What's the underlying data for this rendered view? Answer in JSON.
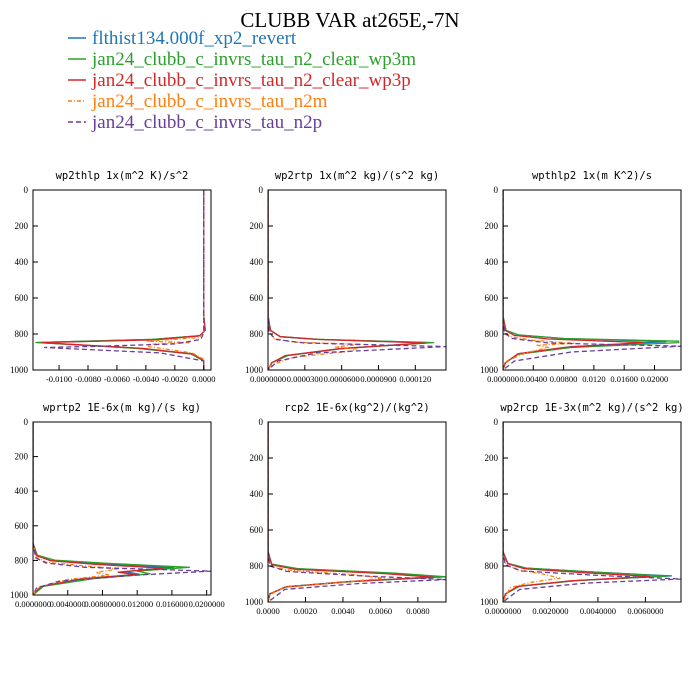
{
  "figure": {
    "title": "CLUBB VAR at265E,-7N"
  },
  "legend": [
    {
      "label": "flthist134.000f_xp2_revert",
      "color": "#1f77b4",
      "dash": "solid"
    },
    {
      "label": "jan24_clubb_c_invrs_tau_n2_clear_wp3m",
      "color": "#2ca02c",
      "dash": "solid"
    },
    {
      "label": "jan24_clubb_c_invrs_tau_n2_clear_wp3p",
      "color": "#d62728",
      "dash": "solid"
    },
    {
      "label": "jan24_clubb_c_invrs_tau_n2m",
      "color": "#ff7f0e",
      "dash": "dashdot"
    },
    {
      "label": "jan24_clubb_c_invrs_tau_n2p",
      "color": "#6a3d9a",
      "dash": "dashed"
    }
  ],
  "chart_data": [
    {
      "type": "line",
      "title": "wp2thlp  1x(m^2 K)/s^2",
      "xlim": [
        -0.0118,
        0.0005
      ],
      "ylim": [
        1000,
        0
      ],
      "xticks": [
        -0.01,
        -0.008,
        -0.006,
        -0.004,
        -0.002,
        0.0
      ],
      "xtick_labels": [
        "-0.0100",
        "-0.0080",
        "-0.0060",
        "-0.0040",
        "-0.0020",
        "0.0000"
      ],
      "yticks": [
        0,
        200,
        400,
        600,
        800,
        1000
      ],
      "ytick_labels": [
        "0",
        "200",
        "400",
        "600",
        "800",
        "1000"
      ],
      "series": [
        {
          "x": [
            0,
            0,
            0,
            0.0001,
            -0.0003,
            -0.0035,
            -0.0115,
            -0.0045,
            -0.0008,
            0,
            0
          ],
          "y": [
            0,
            300,
            700,
            780,
            810,
            830,
            847,
            880,
            910,
            950,
            1000
          ]
        },
        {
          "x": [
            0,
            0,
            0,
            0.0001,
            -0.0003,
            -0.0036,
            -0.0116,
            -0.0046,
            -0.0009,
            0,
            0
          ],
          "y": [
            0,
            300,
            700,
            780,
            810,
            830,
            847,
            880,
            910,
            950,
            1000
          ]
        },
        {
          "x": [
            0,
            0,
            0,
            0.0001,
            -0.0003,
            -0.0033,
            -0.0112,
            -0.0042,
            -0.0007,
            0,
            0
          ],
          "y": [
            0,
            300,
            700,
            780,
            810,
            832,
            848,
            880,
            912,
            950,
            1000
          ]
        },
        {
          "x": [
            0,
            0,
            0,
            0,
            -0.0003,
            -0.004,
            -0.001,
            -0.0038,
            -0.0038,
            -0.0008,
            0,
            0
          ],
          "y": [
            0,
            300,
            700,
            790,
            820,
            840,
            848,
            858,
            870,
            905,
            940,
            1000
          ]
        },
        {
          "x": [
            0,
            0,
            0,
            0,
            -0.0002,
            -0.002,
            -0.007,
            -0.011,
            -0.003,
            0,
            0
          ],
          "y": [
            0,
            300,
            700,
            790,
            830,
            855,
            868,
            875,
            905,
            950,
            1000
          ]
        }
      ]
    },
    {
      "type": "line",
      "title": "wp2rtp  1x(m^2 kg)/(s^2 kg)",
      "xlim": [
        0.0,
        0.000145
      ],
      "ylim": [
        1000,
        0
      ],
      "xticks": [
        0.0,
        3e-05,
        6e-05,
        9e-05,
        0.00012
      ],
      "xtick_labels": [
        "0.0000000",
        "0.0000300",
        "0.0000600",
        "0.0000900",
        "0.000120"
      ],
      "yticks": [
        0,
        200,
        400,
        600,
        800,
        1000
      ],
      "ytick_labels": [
        "0",
        "200",
        "400",
        "600",
        "800",
        "1000"
      ],
      "series": [
        {
          "x": [
            0,
            0,
            2e-06,
            1e-05,
            4e-05,
            0.000132,
            6e-05,
            1.5e-05,
            3e-06,
            0
          ],
          "y": [
            0,
            700,
            780,
            815,
            830,
            848,
            880,
            920,
            960,
            1000
          ]
        },
        {
          "x": [
            0,
            0,
            2e-06,
            1e-05,
            4.2e-05,
            0.000135,
            6.2e-05,
            1.6e-05,
            3e-06,
            0
          ],
          "y": [
            0,
            700,
            780,
            815,
            830,
            848,
            880,
            920,
            960,
            1000
          ]
        },
        {
          "x": [
            0,
            0,
            2e-06,
            1e-05,
            4e-05,
            0.000128,
            5.8e-05,
            1.4e-05,
            3e-06,
            0
          ],
          "y": [
            0,
            700,
            780,
            815,
            830,
            850,
            882,
            920,
            960,
            1000
          ]
        },
        {
          "x": [
            0,
            0,
            1e-06,
            5e-06,
            2e-05,
            7.5e-05,
            5.5e-05,
            7.2e-05,
            6.8e-05,
            2e-05,
            2e-06,
            0
          ],
          "y": [
            0,
            700,
            790,
            825,
            845,
            858,
            872,
            882,
            895,
            930,
            975,
            1000
          ]
        },
        {
          "x": [
            0,
            0,
            1e-06,
            6e-06,
            3e-05,
            0.000145,
            4e-05,
            8e-06,
            0
          ],
          "y": [
            0,
            700,
            790,
            830,
            850,
            870,
            905,
            950,
            1000
          ]
        }
      ]
    },
    {
      "type": "line",
      "title": "wpthlp2  1x(m K^2)/s",
      "xlim": [
        0.0,
        0.0235
      ],
      "ylim": [
        1000,
        0
      ],
      "xticks": [
        0.0,
        0.004,
        0.008,
        0.012,
        0.016,
        0.02
      ],
      "xtick_labels": [
        "0.000000",
        "0.00400",
        "0.00800",
        "0.0120",
        "0.01600",
        "0.02000"
      ],
      "yticks": [
        0,
        200,
        400,
        600,
        800,
        1000
      ],
      "ytick_labels": [
        "0",
        "200",
        "400",
        "600",
        "800",
        "1000"
      ],
      "series": [
        {
          "x": [
            0,
            0,
            0.0004,
            0.002,
            0.008,
            0.0215,
            0.009,
            0.002,
            0.0003,
            0
          ],
          "y": [
            0,
            700,
            780,
            805,
            825,
            843,
            870,
            910,
            960,
            1000
          ]
        },
        {
          "x": [
            0,
            0,
            0.0004,
            0.002,
            0.008,
            0.0232,
            0.0232,
            0.009,
            0.002,
            0.0003,
            0
          ],
          "y": [
            0,
            700,
            780,
            805,
            825,
            840,
            848,
            875,
            912,
            960,
            1000
          ]
        },
        {
          "x": [
            0,
            0,
            0.0003,
            0.0015,
            0.006,
            0.0185,
            0.008,
            0.002,
            0.0003,
            0
          ],
          "y": [
            0,
            700,
            780,
            808,
            828,
            848,
            875,
            910,
            960,
            1000
          ]
        },
        {
          "x": [
            0,
            0,
            0.0002,
            0.001,
            0.004,
            0.0095,
            0.0045,
            0.006,
            0.003,
            0.0005,
            0
          ],
          "y": [
            0,
            700,
            790,
            815,
            835,
            852,
            862,
            875,
            905,
            950,
            1000
          ]
        },
        {
          "x": [
            0,
            0,
            0.0002,
            0.0012,
            0.006,
            0.0235,
            0.009,
            0.0015,
            0
          ],
          "y": [
            0,
            700,
            795,
            825,
            850,
            868,
            900,
            950,
            1000
          ]
        }
      ]
    },
    {
      "type": "line",
      "title": "wprtp2  1E-6x(m kg)/(s kg)",
      "xlim": [
        0.0,
        0.0205
      ],
      "ylim": [
        1000,
        0
      ],
      "xticks": [
        0.0,
        0.004,
        0.008,
        0.012,
        0.016,
        0.02
      ],
      "xtick_labels": [
        "0.0000000",
        "0.0040000",
        "0.0080000",
        "0.012000",
        "0.016000",
        "0.0200000"
      ],
      "yticks": [
        0,
        200,
        400,
        600,
        800,
        1000
      ],
      "ytick_labels": [
        "0",
        "200",
        "400",
        "600",
        "800",
        "1000"
      ],
      "series": [
        {
          "x": [
            0,
            0,
            0.0004,
            0.002,
            0.008,
            0.0162,
            0.0105,
            0.0122,
            0.006,
            0.001,
            0
          ],
          "y": [
            0,
            700,
            770,
            800,
            820,
            842,
            865,
            880,
            905,
            950,
            1000
          ]
        },
        {
          "x": [
            0,
            0,
            0.0005,
            0.0025,
            0.009,
            0.018,
            0.012,
            0.0135,
            0.007,
            0.0012,
            0
          ],
          "y": [
            0,
            700,
            770,
            798,
            818,
            840,
            862,
            878,
            905,
            950,
            1000
          ]
        },
        {
          "x": [
            0,
            0,
            0.0004,
            0.002,
            0.007,
            0.015,
            0.0098,
            0.0118,
            0.0055,
            0.0009,
            0
          ],
          "y": [
            0,
            700,
            772,
            802,
            822,
            845,
            868,
            882,
            907,
            950,
            1000
          ]
        },
        {
          "x": [
            0,
            0,
            0.0003,
            0.0015,
            0.0055,
            0.0098,
            0.0072,
            0.0088,
            0.004,
            0.0006,
            0
          ],
          "y": [
            0,
            700,
            780,
            810,
            830,
            850,
            870,
            885,
            910,
            955,
            1000
          ]
        },
        {
          "x": [
            0,
            0,
            0.0003,
            0.0015,
            0.006,
            0.0205,
            0.012,
            0.003,
            0.0004,
            0
          ],
          "y": [
            0,
            700,
            785,
            815,
            840,
            862,
            885,
            920,
            960,
            1000
          ]
        }
      ]
    },
    {
      "type": "line",
      "title": "rcp2  1E-6x(kg^2)/(kg^2)",
      "xlim": [
        0.0,
        0.0095
      ],
      "ylim": [
        1000,
        0
      ],
      "xticks": [
        0.0,
        0.002,
        0.004,
        0.006,
        0.008
      ],
      "xtick_labels": [
        "0.0000",
        "0.0020",
        "0.0040",
        "0.0060",
        "0.0080"
      ],
      "yticks": [
        0,
        200,
        400,
        600,
        800,
        1000
      ],
      "ytick_labels": [
        "0",
        "200",
        "400",
        "600",
        "800",
        "1000"
      ],
      "series": [
        {
          "x": [
            0,
            0,
            0.0002,
            0.0015,
            0.0065,
            0.0092,
            0.0045,
            0.001,
            0.0001,
            0
          ],
          "y": [
            0,
            720,
            790,
            815,
            840,
            860,
            885,
            915,
            955,
            1000
          ]
        },
        {
          "x": [
            0,
            0,
            0.0002,
            0.0016,
            0.0068,
            0.0095,
            0.0047,
            0.001,
            0.0001,
            0
          ],
          "y": [
            0,
            720,
            790,
            815,
            840,
            860,
            885,
            915,
            955,
            1000
          ]
        },
        {
          "x": [
            0,
            0,
            0.0002,
            0.0014,
            0.0062,
            0.0088,
            0.0042,
            0.0009,
            0.0001,
            0
          ],
          "y": [
            0,
            720,
            792,
            818,
            842,
            862,
            887,
            917,
            955,
            1000
          ]
        },
        {
          "x": [
            0,
            0,
            0.0001,
            0.001,
            0.0045,
            0.0062,
            0.004,
            0.0008,
            0.0001,
            0
          ],
          "y": [
            0,
            720,
            795,
            822,
            848,
            868,
            890,
            920,
            960,
            1000
          ]
        },
        {
          "x": [
            0,
            0,
            0.0001,
            0.001,
            0.005,
            0.0095,
            0.0048,
            0.0009,
            0
          ],
          "y": [
            0,
            720,
            800,
            830,
            855,
            875,
            898,
            930,
            1000
          ]
        }
      ]
    },
    {
      "type": "line",
      "title": "wp2rcp  1E-3x(m^2 kg)/(s^2 kg)",
      "xlim": [
        0.0,
        0.0075
      ],
      "ylim": [
        1000,
        0
      ],
      "xticks": [
        0.0,
        0.002,
        0.004,
        0.006
      ],
      "xtick_labels": [
        "0.0000000",
        "0.0020000",
        "0.0040000",
        "0.0060000"
      ],
      "yticks": [
        0,
        200,
        400,
        600,
        800,
        1000
      ],
      "ytick_labels": [
        "0",
        "200",
        "400",
        "600",
        "800",
        "1000"
      ],
      "series": [
        {
          "x": [
            0,
            0,
            0.0002,
            0.001,
            0.004,
            0.0071,
            0.0032,
            0.0007,
            0.0001,
            0
          ],
          "y": [
            0,
            720,
            785,
            812,
            835,
            855,
            880,
            912,
            955,
            1000
          ]
        },
        {
          "x": [
            0,
            0,
            0.0002,
            0.001,
            0.004,
            0.0069,
            0.0031,
            0.0007,
            0.0001,
            0
          ],
          "y": [
            0,
            720,
            785,
            812,
            835,
            856,
            881,
            912,
            955,
            1000
          ]
        },
        {
          "x": [
            0,
            0,
            0.0002,
            0.0009,
            0.0035,
            0.0062,
            0.0028,
            0.0006,
            0.0001,
            0
          ],
          "y": [
            0,
            720,
            787,
            815,
            838,
            858,
            883,
            914,
            955,
            1000
          ]
        },
        {
          "x": [
            0,
            0,
            0.0001,
            0.0006,
            0.0018,
            0.0024,
            0.0012,
            0.0003,
            0
          ],
          "y": [
            0,
            720,
            790,
            820,
            848,
            868,
            890,
            920,
            1000
          ]
        },
        {
          "x": [
            0,
            0,
            0.0001,
            0.0008,
            0.004,
            0.0075,
            0.0035,
            0.0007,
            0
          ],
          "y": [
            0,
            720,
            795,
            828,
            852,
            872,
            895,
            930,
            1000
          ]
        }
      ]
    }
  ]
}
